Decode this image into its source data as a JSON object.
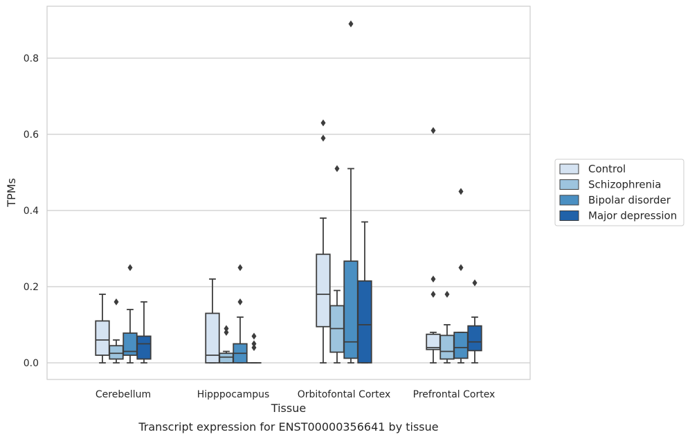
{
  "caption": "Transcript expression for ENST00000356641 by tissue",
  "chart_data": {
    "type": "box",
    "xlabel": "Tissue",
    "ylabel": "TPMs",
    "ylim": [
      -0.045,
      0.94
    ],
    "yticks": [
      "0.0",
      "0.2",
      "0.4",
      "0.6",
      "0.8"
    ],
    "ytick_values": [
      0.0,
      0.2,
      0.4,
      0.6,
      0.8
    ],
    "grid": "horizontal",
    "legend_position": "right",
    "categories": [
      "Cerebellum",
      "Hipppocampus",
      "Orbitofontal Cortex",
      "Prefrontal Cortex"
    ],
    "series": [
      {
        "name": "Control",
        "color": "#d5e3f2",
        "boxes": [
          {
            "whislo": 0.0,
            "q1": 0.02,
            "med": 0.06,
            "q3": 0.11,
            "whishi": 0.18,
            "fliers": []
          },
          {
            "whislo": 0.0,
            "q1": 0.0,
            "med": 0.02,
            "q3": 0.13,
            "whishi": 0.22,
            "fliers": []
          },
          {
            "whislo": 0.0,
            "q1": 0.095,
            "med": 0.18,
            "q3": 0.285,
            "whishi": 0.38,
            "fliers": [
              0.59,
              0.63
            ]
          },
          {
            "whislo": 0.0,
            "q1": 0.035,
            "med": 0.04,
            "q3": 0.075,
            "whishi": 0.08,
            "fliers": [
              0.18,
              0.22,
              0.61
            ]
          }
        ]
      },
      {
        "name": "Schizophrenia",
        "color": "#9dc4de",
        "boxes": [
          {
            "whislo": 0.0,
            "q1": 0.01,
            "med": 0.025,
            "q3": 0.045,
            "whishi": 0.06,
            "fliers": [
              0.16
            ]
          },
          {
            "whislo": 0.0,
            "q1": 0.0,
            "med": 0.015,
            "q3": 0.025,
            "whishi": 0.03,
            "fliers": [
              0.08,
              0.09
            ]
          },
          {
            "whislo": 0.0,
            "q1": 0.028,
            "med": 0.09,
            "q3": 0.15,
            "whishi": 0.19,
            "fliers": [
              0.51
            ]
          },
          {
            "whislo": 0.0,
            "q1": 0.01,
            "med": 0.03,
            "q3": 0.072,
            "whishi": 0.1,
            "fliers": [
              0.18
            ]
          }
        ]
      },
      {
        "name": "Bipolar disorder",
        "color": "#4a8fc2",
        "boxes": [
          {
            "whislo": 0.0,
            "q1": 0.02,
            "med": 0.03,
            "q3": 0.078,
            "whishi": 0.14,
            "fliers": [
              0.25
            ]
          },
          {
            "whislo": 0.0,
            "q1": 0.0,
            "med": 0.025,
            "q3": 0.05,
            "whishi": 0.12,
            "fliers": [
              0.16,
              0.25
            ]
          },
          {
            "whislo": 0.0,
            "q1": 0.012,
            "med": 0.055,
            "q3": 0.267,
            "whishi": 0.51,
            "fliers": [
              0.89
            ]
          },
          {
            "whislo": 0.0,
            "q1": 0.012,
            "med": 0.04,
            "q3": 0.08,
            "whishi": 0.08,
            "fliers": [
              0.25,
              0.45
            ]
          }
        ]
      },
      {
        "name": "Major depression",
        "color": "#2162a9",
        "boxes": [
          {
            "whislo": 0.0,
            "q1": 0.01,
            "med": 0.05,
            "q3": 0.07,
            "whishi": 0.16,
            "fliers": []
          },
          {
            "whislo": 0.0,
            "q1": 0.0,
            "med": 0.0,
            "q3": 0.0,
            "whishi": 0.0,
            "fliers": [
              0.04,
              0.05,
              0.07
            ]
          },
          {
            "whislo": 0.0,
            "q1": 0.0,
            "med": 0.1,
            "q3": 0.215,
            "whishi": 0.37,
            "fliers": []
          },
          {
            "whislo": 0.0,
            "q1": 0.032,
            "med": 0.055,
            "q3": 0.097,
            "whishi": 0.12,
            "fliers": [
              0.21
            ]
          }
        ]
      }
    ]
  }
}
